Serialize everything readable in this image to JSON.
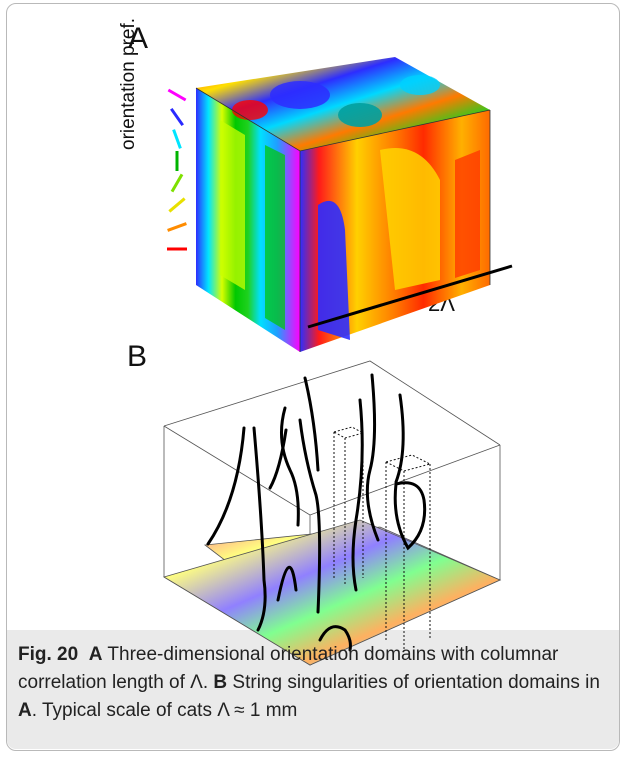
{
  "panel_a": {
    "label": "A",
    "side_label": "orientation pref.",
    "scale_label": "2Λ",
    "bar_colors": [
      "#ff00ff",
      "#2a2aff",
      "#00e5ff",
      "#00b400",
      "#7ee000",
      "#e8e000",
      "#ff8c00",
      "#ff0000"
    ]
  },
  "panel_b": {
    "label": "B"
  },
  "caption": {
    "fig_label": "Fig. 20",
    "a_letter": "A",
    "a_text": " Three-dimensional orientation domains with columnar correlation length of Λ. ",
    "b_letter": "B",
    "b_text": " String singularities of orientation domains in ",
    "ref_letter": "A",
    "tail": ". Typical scale of cats Λ ≈ 1 mm"
  }
}
